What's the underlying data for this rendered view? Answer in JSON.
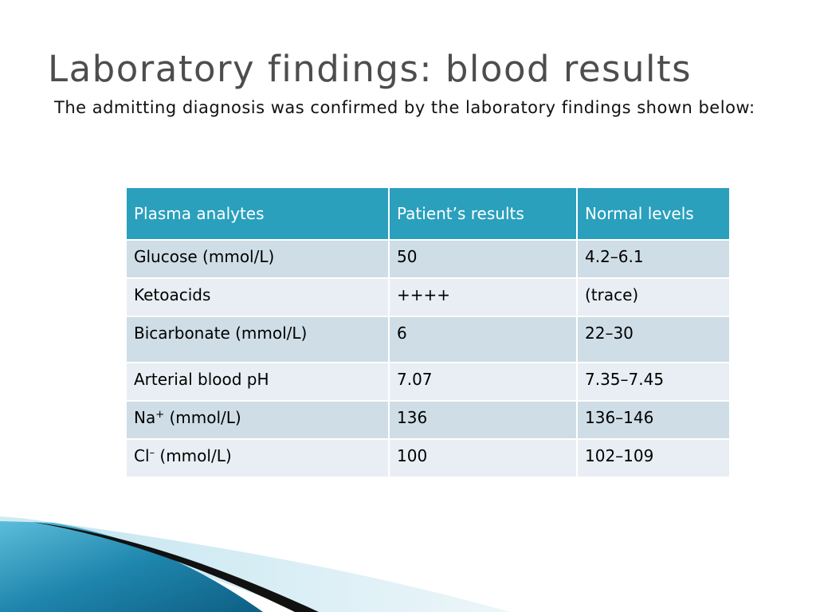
{
  "slide": {
    "title": "Laboratory findings: blood results",
    "subtitle": "The admitting diagnosis was confirmed by the laboratory findings shown below:"
  },
  "table": {
    "headers": [
      "Plasma analytes",
      "Patient’s results",
      "Normal levels"
    ],
    "rows": [
      {
        "analyte": "Glucose (mmol/L)",
        "patient": "50",
        "normal": "4.2–6.1"
      },
      {
        "analyte": "Ketoacids",
        "patient": "++++",
        "normal": "(trace)"
      },
      {
        "analyte": "Bicarbonate (mmol/L)",
        "patient": "6",
        "normal": "22–30"
      },
      {
        "analyte": "Arterial blood pH",
        "patient": "7.07",
        "normal": "7.35–7.45"
      },
      {
        "analyte_base": "Na",
        "analyte_sup": "+",
        "analyte_rest": " (mmol/L)",
        "patient": "136",
        "normal": "136–146"
      },
      {
        "analyte_base": "Cl",
        "analyte_sup": "–",
        "analyte_rest": " (mmol/L)",
        "patient": "100",
        "normal": "102–109"
      }
    ]
  },
  "colors": {
    "header_bg": "#2aa0bd",
    "row_dark": "#cfdde6",
    "row_light": "#e8eef3",
    "title": "#4d4d4d",
    "swoosh_blue": "#1f7fa3",
    "swoosh_black": "#111111"
  }
}
